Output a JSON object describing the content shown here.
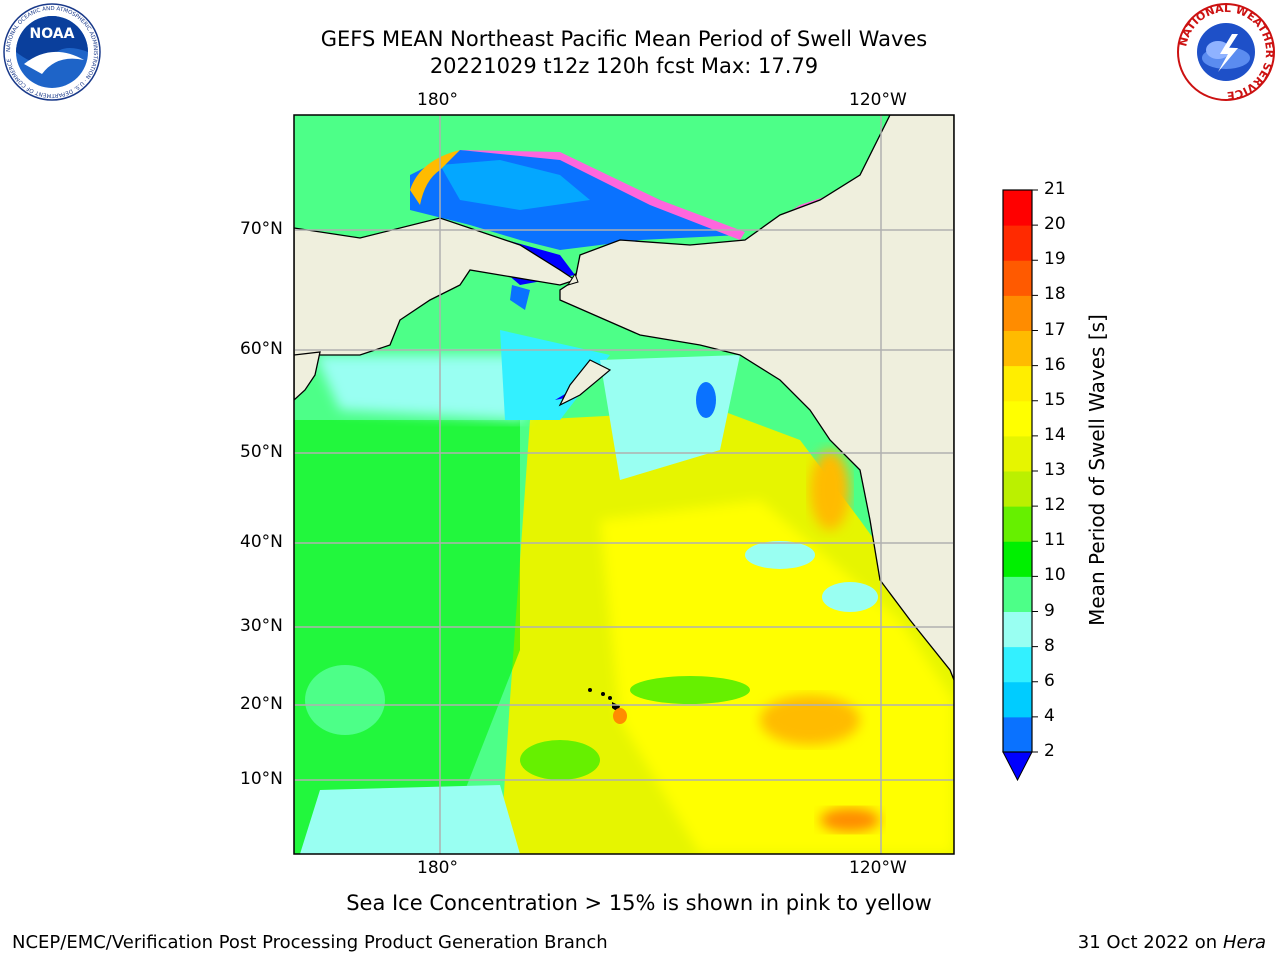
{
  "header": {
    "title_line1": "GEFS MEAN Northeast Pacific Mean Period of Swell Waves",
    "title_line2": "20221029 t12z 120h fcst   Max: 17.79"
  },
  "logos": {
    "noaa_text": "NOAA",
    "noaa_ring_text": "NATIONAL OCEANIC AND ATMOSPHERIC ADMINISTRATION · U.S. DEPARTMENT OF COMMERCE",
    "nws_ring_text": "NATIONAL WEATHER SERVICE"
  },
  "map": {
    "lon_labels_top": [
      "180°",
      "120°W"
    ],
    "lon_labels_bottom": [
      "180°",
      "120°W"
    ],
    "lat_labels": [
      "70°N",
      "60°N",
      "50°N",
      "40°N",
      "30°N",
      "20°N",
      "10°N"
    ]
  },
  "colorbar": {
    "label": "Mean Period of Swell Waves [s]",
    "ticks": [
      "2",
      "4",
      "6",
      "8",
      "9",
      "10",
      "11",
      "12",
      "13",
      "14",
      "15",
      "16",
      "17",
      "18",
      "19",
      "20",
      "21"
    ],
    "colors": [
      "#0a72ff",
      "#00ccff",
      "#33f0ff",
      "#99fff2",
      "#4dff88",
      "#00f000",
      "#66f000",
      "#bbf000",
      "#e6f500",
      "#ffff00",
      "#ffee00",
      "#ffbb00",
      "#ff8c00",
      "#ff5a00",
      "#ff2a00",
      "#ff0000"
    ],
    "extend_color": "#0000ff"
  },
  "sea_ice_note": "Sea Ice Concentration > 15% is shown in pink to yellow",
  "footer": {
    "left": "NCEP/EMC/Verification Post Processing Product Generation Branch",
    "date": "31 Oct 2022 on ",
    "machine": "Hera"
  }
}
